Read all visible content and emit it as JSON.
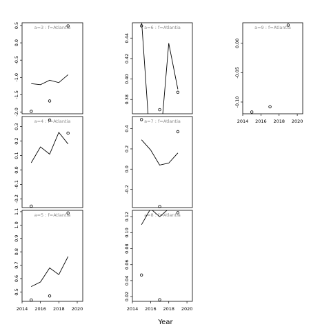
{
  "chart_data": {
    "type": "line",
    "xlabel": "Year",
    "x_ticks": [
      2014,
      2016,
      2018,
      2020
    ],
    "panels": [
      {
        "label": "a=3  :  f=Atlantia",
        "xlim": [
          2014,
          2020.6
        ],
        "ylim": [
          -2.05,
          0.58
        ],
        "y_ticks": [
          0.5,
          0.0,
          -0.5,
          -1.0,
          -1.5,
          -2.0
        ],
        "y_tick_labels": [
          "0.5",
          "0.0",
          "-0.5",
          "-1.0",
          "-1.5",
          "-2.0"
        ],
        "show_x_axis": false,
        "line": {
          "x": [
            2015,
            2016,
            2017,
            2018,
            2019
          ],
          "y": [
            -1.18,
            -1.21,
            -1.08,
            -1.15,
            -0.92
          ]
        },
        "points": {
          "x": [
            2015,
            2017,
            2019
          ],
          "y": [
            -1.98,
            -1.68,
            0.49
          ]
        }
      },
      {
        "label": "a=6  :  f=Atlantia",
        "xlim": [
          2014,
          2020.6
        ],
        "ylim": [
          0.366,
          0.455
        ],
        "y_ticks": [
          0.44,
          0.42,
          0.4,
          0.38
        ],
        "y_tick_labels": [
          "0.44",
          "0.42",
          "0.40",
          "0.38"
        ],
        "show_x_axis": false,
        "line": {
          "x": [
            2015,
            2016,
            2017,
            2018,
            2019
          ],
          "y": [
            0.458,
            0.33,
            0.33,
            0.435,
            0.39
          ]
        },
        "points": {
          "x": [
            2015,
            2017,
            2019
          ],
          "y": [
            0.452,
            0.37,
            0.387
          ]
        }
      },
      {
        "label": "a=9  :  f=Atlantia",
        "xlim": [
          2014,
          2020.6
        ],
        "ylim": [
          -0.12,
          0.035
        ],
        "y_ticks": [
          0.0,
          -0.05,
          -0.1
        ],
        "y_tick_labels": [
          "0.00",
          "-0.05",
          "-0.10"
        ],
        "show_x_axis": true,
        "line": null,
        "points": {
          "x": [
            2015,
            2017,
            2019
          ],
          "y": [
            -0.117,
            -0.108,
            0.031
          ]
        }
      },
      {
        "label": "a=4  :  f=Atlantia",
        "xlim": [
          2014,
          2020.6
        ],
        "ylim": [
          -0.26,
          0.37
        ],
        "y_ticks": [
          0.3,
          0.2,
          0.1,
          0.0,
          -0.1,
          -0.2
        ],
        "y_tick_labels": [
          "0.3",
          "0.2",
          "0.1",
          "0.0",
          "-0.1",
          "-0.2"
        ],
        "show_x_axis": false,
        "line": {
          "x": [
            2015,
            2016,
            2017,
            2018,
            2019
          ],
          "y": [
            0.05,
            0.16,
            0.11,
            0.26,
            0.18
          ]
        },
        "points": {
          "x": [
            2015,
            2017,
            2019
          ],
          "y": [
            -0.25,
            0.345,
            0.255
          ]
        }
      },
      {
        "label": "a=7  :  f=Atlantia",
        "xlim": [
          2014,
          2020.6
        ],
        "ylim": [
          -0.38,
          0.52
        ],
        "y_ticks": [
          0.4,
          0.2,
          0.0,
          -0.2
        ],
        "y_tick_labels": [
          "0.4",
          "0.2",
          "0.0",
          "-0.2"
        ],
        "show_x_axis": false,
        "line": {
          "x": [
            2015,
            2016,
            2017,
            2018,
            2019
          ],
          "y": [
            0.29,
            0.19,
            0.04,
            0.06,
            0.16
          ]
        },
        "points": {
          "x": [
            2015,
            2017,
            2019
          ],
          "y": [
            0.49,
            -0.37,
            0.37
          ]
        }
      },
      {
        "label": "a=5  :  f=Atlantia",
        "xlim": [
          2014,
          2020.6
        ],
        "ylim": [
          0.43,
          1.11
        ],
        "y_ticks": [
          1.1,
          1.0,
          0.9,
          0.8,
          0.7,
          0.6,
          0.5
        ],
        "y_tick_labels": [
          "1.1",
          "1.0",
          "0.9",
          "0.8",
          "0.7",
          "0.6",
          "0.5"
        ],
        "show_x_axis": true,
        "line": {
          "x": [
            2015,
            2016,
            2017,
            2018,
            2019
          ],
          "y": [
            0.54,
            0.575,
            0.68,
            0.63,
            0.765
          ]
        },
        "points": {
          "x": [
            2015,
            2017,
            2019
          ],
          "y": [
            0.44,
            0.47,
            1.09
          ]
        }
      },
      {
        "label": "a=8  :  f=Atlantia",
        "xlim": [
          2014,
          2020.6
        ],
        "ylim": [
          0.014,
          0.128
        ],
        "y_ticks": [
          0.12,
          0.1,
          0.08,
          0.06,
          0.04,
          0.02
        ],
        "y_tick_labels": [
          "0.12",
          "0.10",
          "0.08",
          "0.06",
          "0.04",
          "0.02"
        ],
        "show_x_axis": true,
        "line": {
          "x": [
            2015,
            2016,
            2017,
            2018,
            2019
          ],
          "y": [
            0.11,
            0.13,
            0.12,
            0.13,
            0.135
          ]
        },
        "points": {
          "x": [
            2015,
            2017,
            2019
          ],
          "y": [
            0.047,
            0.016,
            0.125
          ]
        }
      }
    ]
  }
}
